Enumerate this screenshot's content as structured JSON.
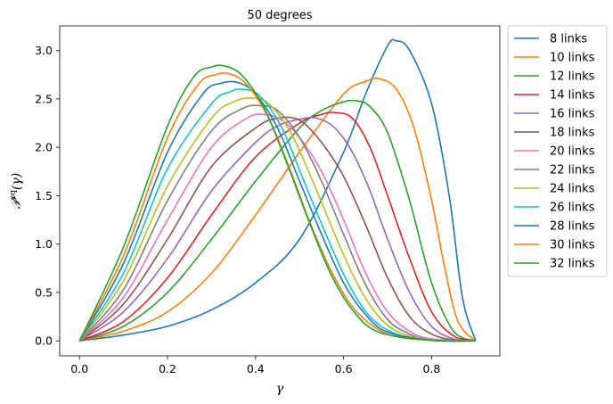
{
  "chart_data": {
    "type": "line",
    "title": "50 degrees",
    "xlabel": "γ",
    "ylabel": "𝒫eq(γ)",
    "ylabel_main": "𝒫",
    "ylabel_sup": "eq",
    "ylabel_arg": "(γ)",
    "xlim": [
      -0.045,
      0.955
    ],
    "ylim": [
      -0.155,
      3.255
    ],
    "x_ticks": [
      {
        "value": 0.0,
        "label": "0.0"
      },
      {
        "value": 0.2,
        "label": "0.2"
      },
      {
        "value": 0.4,
        "label": "0.4"
      },
      {
        "value": 0.6,
        "label": "0.6"
      },
      {
        "value": 0.8,
        "label": "0.8"
      }
    ],
    "y_ticks": [
      {
        "value": 0.0,
        "label": "0.0"
      },
      {
        "value": 0.5,
        "label": "0.5"
      },
      {
        "value": 1.0,
        "label": "1.0"
      },
      {
        "value": 1.5,
        "label": "1.5"
      },
      {
        "value": 2.0,
        "label": "2.0"
      },
      {
        "value": 2.5,
        "label": "2.5"
      },
      {
        "value": 3.0,
        "label": "3.0"
      }
    ],
    "grid": false,
    "legend_placement": "outside-right-top",
    "series": [
      {
        "name": "8 links",
        "color": "#1f77b4",
        "x": [
          0,
          0.1,
          0.2,
          0.3,
          0.4,
          0.5,
          0.6,
          0.65,
          0.7,
          0.72,
          0.75,
          0.8,
          0.84,
          0.87,
          0.9
        ],
        "y": [
          0,
          0.06,
          0.15,
          0.32,
          0.6,
          1.05,
          1.95,
          2.55,
          3.05,
          3.1,
          3.0,
          2.45,
          1.5,
          0.45,
          0.0
        ]
      },
      {
        "name": "10 links",
        "color": "#ff7f0e",
        "x": [
          0,
          0.1,
          0.2,
          0.3,
          0.4,
          0.5,
          0.6,
          0.65,
          0.68,
          0.72,
          0.76,
          0.8,
          0.83,
          0.86,
          0.9
        ],
        "y": [
          0,
          0.1,
          0.3,
          0.7,
          1.3,
          1.95,
          2.55,
          2.68,
          2.71,
          2.6,
          2.2,
          1.45,
          0.75,
          0.2,
          0.0
        ]
      },
      {
        "name": "12 links",
        "color": "#2ca02c",
        "x": [
          0,
          0.1,
          0.2,
          0.3,
          0.4,
          0.5,
          0.55,
          0.6,
          0.63,
          0.66,
          0.7,
          0.75,
          0.8,
          0.85,
          0.9
        ],
        "y": [
          0,
          0.15,
          0.5,
          1.05,
          1.65,
          2.2,
          2.38,
          2.47,
          2.48,
          2.42,
          2.15,
          1.45,
          0.6,
          0.1,
          0.0
        ]
      },
      {
        "name": "14 links",
        "color": "#d62728",
        "x": [
          0,
          0.1,
          0.2,
          0.3,
          0.4,
          0.5,
          0.55,
          0.58,
          0.62,
          0.66,
          0.7,
          0.75,
          0.8,
          0.85,
          0.9
        ],
        "y": [
          0,
          0.2,
          0.65,
          1.3,
          1.9,
          2.25,
          2.34,
          2.36,
          2.3,
          2.0,
          1.5,
          0.85,
          0.3,
          0.05,
          0.0
        ]
      },
      {
        "name": "16 links",
        "color": "#9467bd",
        "x": [
          0,
          0.1,
          0.2,
          0.3,
          0.4,
          0.45,
          0.5,
          0.54,
          0.58,
          0.62,
          0.66,
          0.7,
          0.75,
          0.8,
          0.85,
          0.9
        ],
        "y": [
          0,
          0.3,
          0.85,
          1.55,
          2.05,
          2.22,
          2.29,
          2.3,
          2.2,
          1.95,
          1.55,
          1.05,
          0.5,
          0.15,
          0.02,
          0.0
        ]
      },
      {
        "name": "18 links",
        "color": "#8c564b",
        "x": [
          0,
          0.1,
          0.2,
          0.3,
          0.4,
          0.45,
          0.5,
          0.55,
          0.6,
          0.65,
          0.7,
          0.75,
          0.8,
          0.85,
          0.9
        ],
        "y": [
          0,
          0.38,
          1.05,
          1.8,
          2.2,
          2.3,
          2.28,
          2.05,
          1.7,
          1.2,
          0.65,
          0.25,
          0.07,
          0.01,
          0.0
        ]
      },
      {
        "name": "20 links",
        "color": "#e377c2",
        "x": [
          0,
          0.1,
          0.2,
          0.3,
          0.38,
          0.42,
          0.46,
          0.5,
          0.55,
          0.6,
          0.65,
          0.7,
          0.75,
          0.8,
          0.9
        ],
        "y": [
          0,
          0.45,
          1.25,
          2.0,
          2.3,
          2.34,
          2.28,
          2.1,
          1.75,
          1.25,
          0.7,
          0.3,
          0.1,
          0.02,
          0.0
        ]
      },
      {
        "name": "22 links",
        "color": "#7f7f7f",
        "x": [
          0,
          0.1,
          0.2,
          0.3,
          0.37,
          0.41,
          0.45,
          0.5,
          0.55,
          0.6,
          0.65,
          0.7,
          0.75,
          0.8,
          0.9
        ],
        "y": [
          0,
          0.53,
          1.45,
          2.17,
          2.4,
          2.43,
          2.38,
          2.1,
          1.65,
          1.1,
          0.58,
          0.22,
          0.07,
          0.01,
          0.0
        ]
      },
      {
        "name": "24 links",
        "color": "#bcbd22",
        "x": [
          0,
          0.1,
          0.2,
          0.3,
          0.35,
          0.39,
          0.43,
          0.48,
          0.53,
          0.58,
          0.63,
          0.68,
          0.73,
          0.8,
          0.9
        ],
        "y": [
          0,
          0.62,
          1.6,
          2.3,
          2.47,
          2.51,
          2.45,
          2.15,
          1.65,
          1.1,
          0.6,
          0.25,
          0.08,
          0.01,
          0.0
        ]
      },
      {
        "name": "26 links",
        "color": "#17becf",
        "x": [
          0,
          0.1,
          0.2,
          0.3,
          0.34,
          0.37,
          0.41,
          0.46,
          0.51,
          0.56,
          0.61,
          0.66,
          0.72,
          0.8,
          0.9
        ],
        "y": [
          0,
          0.7,
          1.78,
          2.45,
          2.57,
          2.6,
          2.53,
          2.2,
          1.65,
          1.1,
          0.6,
          0.25,
          0.07,
          0.01,
          0.0
        ]
      },
      {
        "name": "28 links",
        "color": "#1f77b4",
        "x": [
          0,
          0.1,
          0.2,
          0.28,
          0.32,
          0.36,
          0.4,
          0.45,
          0.5,
          0.55,
          0.6,
          0.65,
          0.7,
          0.8,
          0.9
        ],
        "y": [
          0,
          0.8,
          1.95,
          2.55,
          2.66,
          2.67,
          2.55,
          2.2,
          1.65,
          1.1,
          0.6,
          0.27,
          0.09,
          0.005,
          0.0
        ]
      },
      {
        "name": "30 links",
        "color": "#ff7f0e",
        "x": [
          0,
          0.1,
          0.2,
          0.27,
          0.31,
          0.34,
          0.38,
          0.43,
          0.48,
          0.53,
          0.58,
          0.63,
          0.7,
          0.8,
          0.9
        ],
        "y": [
          0,
          0.88,
          2.1,
          2.65,
          2.75,
          2.76,
          2.65,
          2.3,
          1.75,
          1.15,
          0.65,
          0.3,
          0.07,
          0.005,
          0.0
        ]
      },
      {
        "name": "32 links",
        "color": "#2ca02c",
        "x": [
          0,
          0.1,
          0.2,
          0.26,
          0.3,
          0.33,
          0.37,
          0.42,
          0.47,
          0.52,
          0.57,
          0.62,
          0.68,
          0.8,
          0.9
        ],
        "y": [
          0,
          0.97,
          2.22,
          2.73,
          2.83,
          2.84,
          2.74,
          2.4,
          1.85,
          1.25,
          0.7,
          0.32,
          0.09,
          0.005,
          0.0
        ]
      }
    ]
  }
}
